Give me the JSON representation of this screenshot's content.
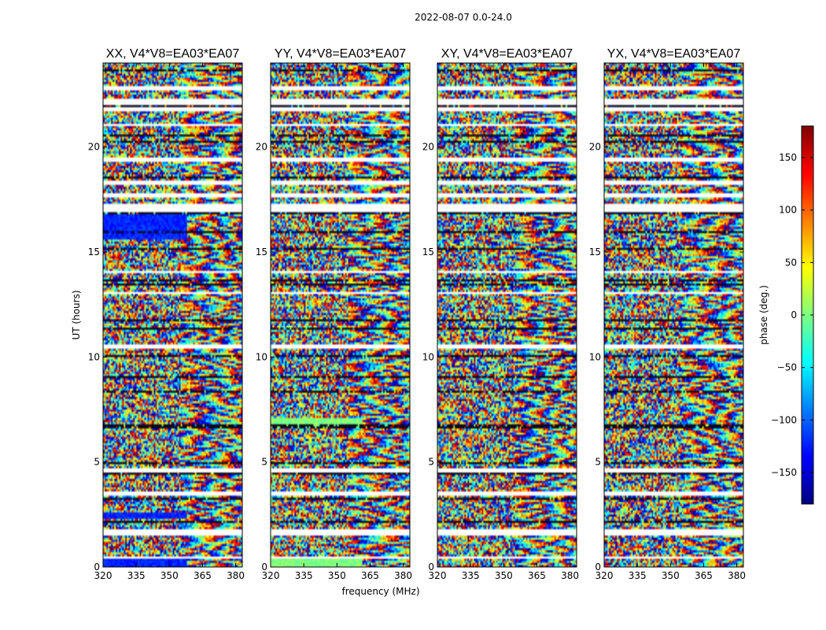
{
  "chart_data": {
    "type": "heatmap",
    "suptitle": "2022-08-07 0.0-24.0",
    "xlabel": "frequency (MHz)",
    "ylabel": "UT (hours)",
    "xlim": [
      320,
      383
    ],
    "ylim": [
      0,
      24
    ],
    "xticks": [
      320,
      335,
      350,
      365,
      380
    ],
    "yticks": [
      0,
      5,
      10,
      15,
      20
    ],
    "colormap": "jet",
    "colorbar": {
      "label": "phase (deg.)",
      "range": [
        -180,
        180
      ],
      "ticks": [
        150,
        100,
        50,
        0,
        -50,
        -100,
        -150
      ],
      "tick_labels": [
        "150",
        "100",
        "50",
        "0",
        "−50",
        "−100",
        "−150"
      ],
      "colors": [
        "#00007f",
        "#0000ff",
        "#007fff",
        "#00ffff",
        "#7fff7f",
        "#ffff00",
        "#ff7f00",
        "#ff0000",
        "#7f0000"
      ]
    },
    "flagged_gaps_hours": [
      [
        0.45,
        0.55
      ],
      [
        1.5,
        1.75
      ],
      [
        3.4,
        3.6
      ],
      [
        4.55,
        4.65
      ],
      [
        7.45,
        7.55
      ],
      [
        10.45,
        10.55
      ],
      [
        13.0,
        13.1
      ],
      [
        14.0,
        14.1
      ],
      [
        16.95,
        17.3
      ],
      [
        17.6,
        17.75
      ],
      [
        18.2,
        18.35
      ],
      [
        19.35,
        19.45
      ],
      [
        21.0,
        21.05
      ],
      [
        21.75,
        21.9
      ],
      [
        22.05,
        22.25
      ],
      [
        22.75,
        22.9
      ]
    ],
    "panels": [
      {
        "title": "XX, V4*V8=EA03*EA07",
        "polarization": "XX",
        "baseline": "V4*V8=EA03*EA07"
      },
      {
        "title": "YY, V4*V8=EA03*EA07",
        "polarization": "YY",
        "baseline": "V4*V8=EA03*EA07"
      },
      {
        "title": "XY, V4*V8=EA03*EA07",
        "polarization": "XY",
        "baseline": "V4*V8=EA03*EA07"
      },
      {
        "title": "YX, V4*V8=EA03*EA07",
        "polarization": "YX",
        "baseline": "V4*V8=EA03*EA07"
      }
    ]
  }
}
